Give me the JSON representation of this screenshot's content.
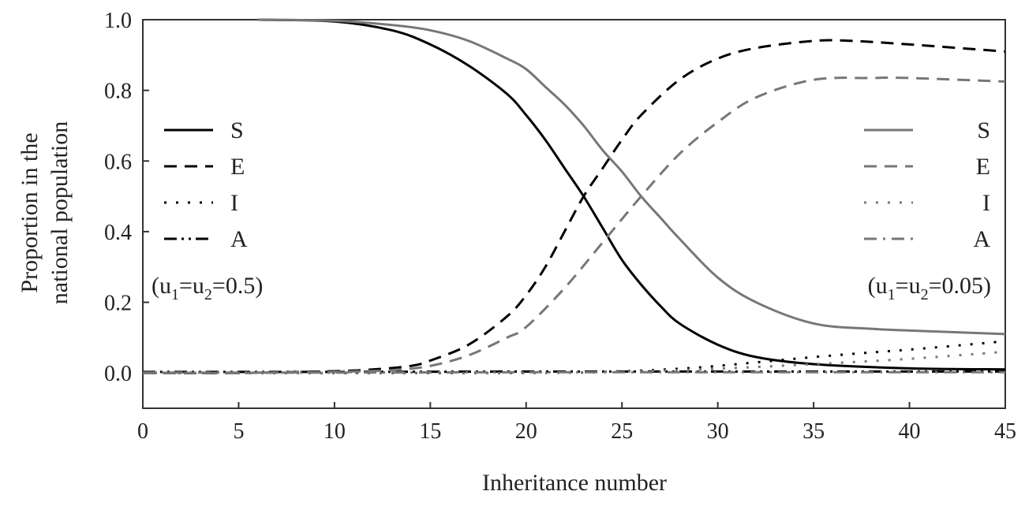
{
  "chart_data": {
    "type": "line",
    "xlabel": "Inheritance number",
    "ylabel_lines": [
      "Proportion in the",
      "national population"
    ],
    "xlim": [
      0,
      45
    ],
    "ylim": [
      -0.1,
      1.0
    ],
    "xticks": [
      0,
      5,
      10,
      15,
      20,
      25,
      30,
      35,
      40,
      45
    ],
    "yticks": [
      0.0,
      0.2,
      0.4,
      0.6,
      0.8,
      1.0
    ],
    "ytick_labels": [
      "0.0",
      "0.2",
      "0.4",
      "0.6",
      "0.8",
      "1.0"
    ],
    "grid": false,
    "legends": [
      {
        "placement": "left",
        "entries": [
          "S",
          "E",
          "I",
          "A"
        ],
        "condition": "(u1=u2=0.5)",
        "color": "#000000"
      },
      {
        "placement": "right",
        "entries": [
          "S",
          "E",
          "I",
          "A"
        ],
        "condition": "(u1=u2=0.05)",
        "color": "#777777"
      }
    ],
    "series": [
      {
        "group": "u1=u2=0.5",
        "name": "S",
        "style": "solid",
        "color": "#000000",
        "x": [
          6,
          10,
          13,
          15,
          17,
          19,
          20,
          21,
          22,
          23,
          24,
          25,
          26,
          27,
          28,
          30,
          32,
          35,
          40,
          45
        ],
        "y": [
          1.0,
          0.995,
          0.97,
          0.93,
          0.87,
          0.79,
          0.73,
          0.66,
          0.58,
          0.5,
          0.41,
          0.32,
          0.25,
          0.19,
          0.14,
          0.08,
          0.045,
          0.025,
          0.013,
          0.01
        ]
      },
      {
        "group": "u1=u2=0.5",
        "name": "E",
        "style": "dashed",
        "color": "#000000",
        "x": [
          0,
          5,
          10,
          12,
          14,
          15,
          17,
          19,
          20,
          21,
          22,
          23,
          24,
          25,
          26,
          28,
          30,
          32,
          35,
          37,
          40,
          45
        ],
        "y": [
          0.0,
          0.0,
          0.005,
          0.01,
          0.02,
          0.035,
          0.08,
          0.16,
          0.22,
          0.3,
          0.4,
          0.5,
          0.58,
          0.66,
          0.73,
          0.83,
          0.89,
          0.92,
          0.94,
          0.94,
          0.93,
          0.91
        ]
      },
      {
        "group": "u1=u2=0.5",
        "name": "I",
        "style": "dotted",
        "color": "#000000",
        "x": [
          0,
          20,
          25,
          28,
          30,
          33,
          35,
          38,
          40,
          43,
          45
        ],
        "y": [
          0.0,
          0.0,
          0.005,
          0.012,
          0.02,
          0.035,
          0.045,
          0.058,
          0.066,
          0.08,
          0.09
        ]
      },
      {
        "group": "u1=u2=0.5",
        "name": "A",
        "style": "dashdotdot",
        "color": "#000000",
        "x": [
          0,
          10,
          20,
          30,
          40,
          45
        ],
        "y": [
          0.003,
          0.003,
          0.004,
          0.004,
          0.004,
          0.004
        ]
      },
      {
        "group": "u1=u2=0.05",
        "name": "S",
        "style": "solid",
        "color": "#777777",
        "x": [
          6,
          10,
          13,
          15,
          17,
          19,
          20,
          21,
          22,
          23,
          24,
          25,
          26,
          27,
          28,
          30,
          32,
          35,
          38,
          40,
          45
        ],
        "y": [
          1.0,
          0.997,
          0.985,
          0.97,
          0.94,
          0.89,
          0.86,
          0.81,
          0.76,
          0.7,
          0.63,
          0.57,
          0.5,
          0.44,
          0.38,
          0.27,
          0.2,
          0.14,
          0.125,
          0.12,
          0.11
        ]
      },
      {
        "group": "u1=u2=0.05",
        "name": "E",
        "style": "dashed",
        "color": "#777777",
        "x": [
          0,
          5,
          10,
          13,
          15,
          17,
          19,
          20,
          22,
          24,
          26,
          28,
          30,
          32,
          35,
          38,
          40,
          45
        ],
        "y": [
          0.0,
          0.0,
          0.003,
          0.008,
          0.02,
          0.05,
          0.1,
          0.13,
          0.24,
          0.37,
          0.5,
          0.62,
          0.71,
          0.78,
          0.83,
          0.835,
          0.835,
          0.825
        ]
      },
      {
        "group": "u1=u2=0.05",
        "name": "I",
        "style": "dotted",
        "color": "#777777",
        "x": [
          0,
          20,
          25,
          30,
          35,
          40,
          45
        ],
        "y": [
          0.0,
          0.0,
          0.004,
          0.012,
          0.025,
          0.04,
          0.06
        ]
      },
      {
        "group": "u1=u2=0.05",
        "name": "A",
        "style": "dashdot",
        "color": "#777777",
        "x": [
          0,
          10,
          20,
          30,
          40,
          45
        ],
        "y": [
          0.001,
          0.001,
          0.002,
          0.002,
          0.002,
          0.002
        ]
      }
    ]
  }
}
